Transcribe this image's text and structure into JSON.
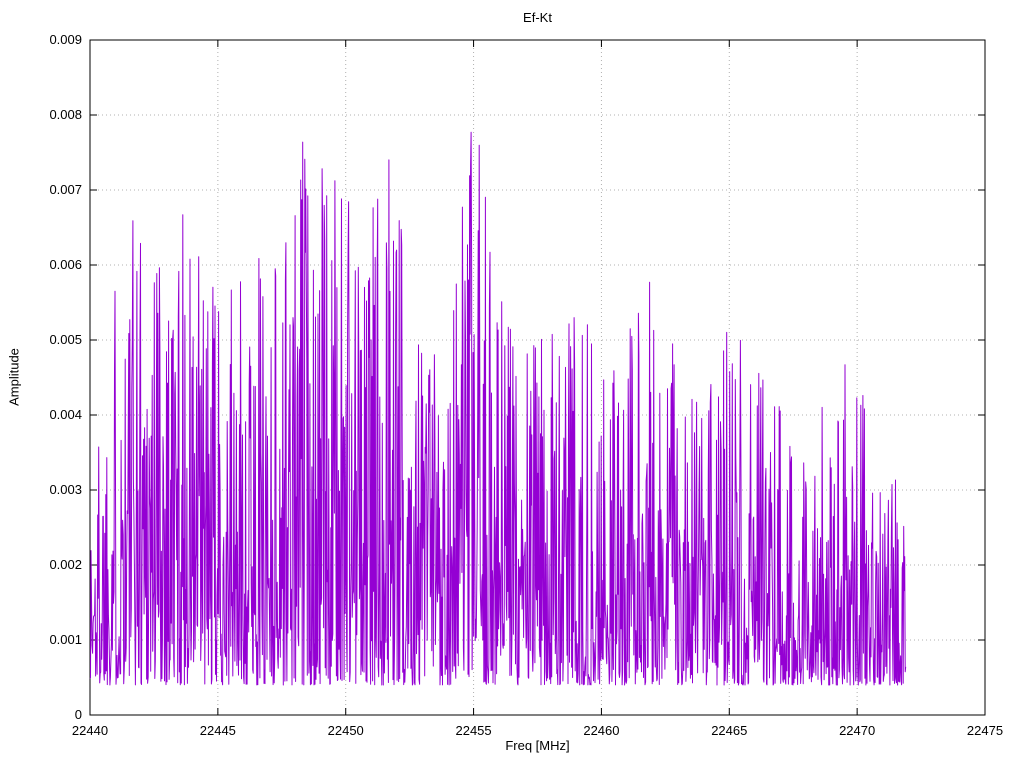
{
  "chart_data": {
    "type": "line",
    "title": "Ef-Kt",
    "xlabel": "Freq [MHz]",
    "ylabel": "Amplitude",
    "xlim": [
      22440,
      22475
    ],
    "ylim": [
      0,
      0.009
    ],
    "xticks": [
      22440,
      22445,
      22450,
      22455,
      22460,
      22465,
      22470,
      22475
    ],
    "xtick_labels": [
      "22440",
      "22445",
      "22450",
      "22455",
      "22460",
      "22465",
      "22470",
      "22475"
    ],
    "yticks": [
      0,
      0.001,
      0.002,
      0.003,
      0.004,
      0.005,
      0.006,
      0.007,
      0.008,
      0.009
    ],
    "ytick_labels": [
      "0",
      "0.001",
      "0.002",
      "0.003",
      "0.004",
      "0.005",
      "0.006",
      "0.007",
      "0.008",
      "0.009"
    ],
    "grid": true,
    "grid_style": "dotted",
    "grid_color": "#b0b0b0",
    "legend": "none",
    "line_color": "#9400d3",
    "border_color": "#000000",
    "series": {
      "name": "Ef-Kt",
      "x_start": 22440.0,
      "x_end": 22471.9,
      "n_points": 1600,
      "noise_floor": 0.0004,
      "noise_exponent": 2.0,
      "seed": 1337,
      "envelope_points": [
        [
          22440.0,
          0.003
        ],
        [
          22441.0,
          0.0062
        ],
        [
          22442.0,
          0.0074
        ],
        [
          22443.0,
          0.0072
        ],
        [
          22444.0,
          0.0066
        ],
        [
          22445.0,
          0.0056
        ],
        [
          22446.0,
          0.0058
        ],
        [
          22447.0,
          0.0065
        ],
        [
          22448.0,
          0.0072
        ],
        [
          22448.6,
          0.0085
        ],
        [
          22449.5,
          0.0069
        ],
        [
          22450.0,
          0.0084
        ],
        [
          22450.7,
          0.006
        ],
        [
          22451.5,
          0.0085
        ],
        [
          22452.0,
          0.0071
        ],
        [
          22453.0,
          0.0054
        ],
        [
          22454.0,
          0.0053
        ],
        [
          22455.0,
          0.0081
        ],
        [
          22455.5,
          0.007
        ],
        [
          22456.0,
          0.0059
        ],
        [
          22457.0,
          0.0054
        ],
        [
          22458.0,
          0.0052
        ],
        [
          22459.0,
          0.0059
        ],
        [
          22460.0,
          0.0045
        ],
        [
          22461.0,
          0.0051
        ],
        [
          22462.0,
          0.0059
        ],
        [
          22463.0,
          0.0047
        ],
        [
          22464.0,
          0.0041
        ],
        [
          22465.0,
          0.0054
        ],
        [
          22466.0,
          0.005
        ],
        [
          22467.0,
          0.0042
        ],
        [
          22468.0,
          0.0039
        ],
        [
          22469.0,
          0.0046
        ],
        [
          22470.0,
          0.0048
        ],
        [
          22471.0,
          0.0036
        ],
        [
          22472.0,
          0.003
        ]
      ],
      "notable_peaks": [
        [
          22442.1,
          0.0074
        ],
        [
          22443.3,
          0.00715
        ],
        [
          22448.5,
          0.0085
        ],
        [
          22450.0,
          0.0084
        ],
        [
          22451.5,
          0.0085
        ],
        [
          22452.1,
          0.0071
        ],
        [
          22455.0,
          0.0081
        ],
        [
          22462.7,
          0.0059
        ],
        [
          22469.9,
          0.0048
        ]
      ]
    }
  }
}
